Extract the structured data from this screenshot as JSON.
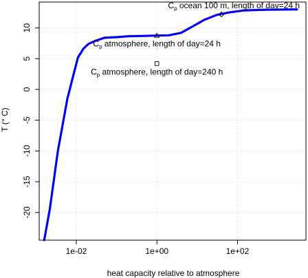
{
  "chart_data": {
    "type": "line",
    "title": "",
    "xlabel": "heat capacity relative to atmosphere",
    "ylabel": "T (° C)",
    "x_scale": "log10",
    "xlim": [
      0.0012,
      5000
    ],
    "ylim": [
      -24.5,
      14.2
    ],
    "x_ticks": [
      {
        "value": 0.01,
        "label": "1e-02"
      },
      {
        "value": 1,
        "label": "1e+00"
      },
      {
        "value": 100,
        "label": "1e+02"
      }
    ],
    "y_ticks": [
      {
        "value": -20,
        "label": "-20"
      },
      {
        "value": -15,
        "label": "-15"
      },
      {
        "value": -10,
        "label": "-10"
      },
      {
        "value": -5,
        "label": "-5"
      },
      {
        "value": 0,
        "label": "0"
      },
      {
        "value": 5,
        "label": "5"
      },
      {
        "value": 10,
        "label": "10"
      }
    ],
    "grid": true,
    "series": [
      {
        "color": "#0000ee",
        "x": [
          0.0016,
          0.0022,
          0.0035,
          0.006,
          0.008,
          0.011,
          0.015,
          0.02,
          0.03,
          0.05,
          0.1,
          0.2,
          0.5,
          1,
          2,
          4,
          8,
          15,
          30,
          60,
          150,
          500,
          3000
        ],
        "y": [
          -24.5,
          -19.5,
          -10,
          -1.5,
          1.7,
          5.2,
          6.6,
          7.4,
          7.9,
          8.4,
          8.5,
          8.65,
          8.7,
          8.75,
          8.8,
          9.2,
          10.3,
          11.3,
          12.1,
          12.5,
          12.85,
          12.95,
          13.0
        ]
      }
    ],
    "annotations": [
      {
        "marker": "triangle",
        "x": 1,
        "y": 8.75,
        "text_main": "C",
        "text_sub": "p",
        "text_rest": " atmosphere, length of day=24 h"
      },
      {
        "marker": "square",
        "x": 1,
        "y": 4.2,
        "text_main": "C",
        "text_sub": "p",
        "text_rest": " atmosphere, length of day=240 h"
      },
      {
        "marker": "diamond",
        "x": 40,
        "y": 12.2,
        "text_main": "C",
        "text_sub": "p",
        "text_rest": " ocean 100 m, length of day=24 h"
      }
    ]
  }
}
